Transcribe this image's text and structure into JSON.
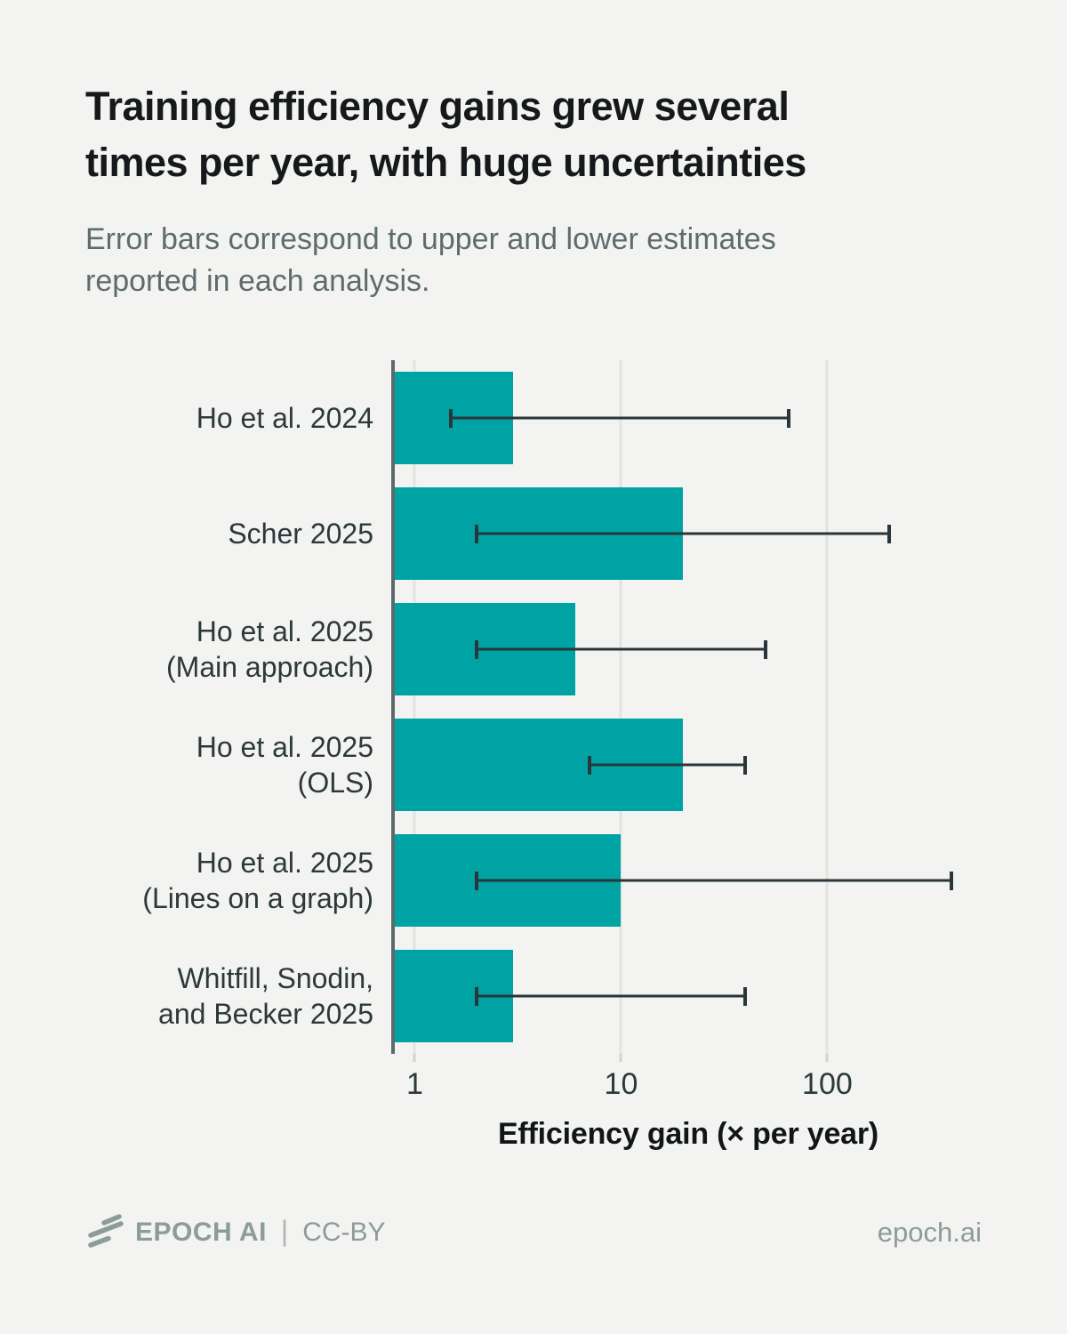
{
  "header": {
    "title_lines": [
      "Training efficiency gains grew several",
      "times per year, with huge uncertainties"
    ],
    "subtitle_lines": [
      "Error bars correspond to upper and lower estimates",
      "reported in each analysis."
    ]
  },
  "chart_data": {
    "type": "bar",
    "orientation": "horizontal",
    "xscale": "log",
    "grid": true,
    "title": "Training efficiency gains grew several times per year, with huge uncertainties",
    "subtitle": "Error bars correspond to upper and lower estimates reported in each analysis.",
    "xlabel": "Efficiency gain (× per year)",
    "xlim": [
      0.8,
      560
    ],
    "xticks": [
      1,
      10,
      100
    ],
    "xtick_labels": [
      "1",
      "10",
      "100"
    ],
    "categories": [
      "Ho et al. 2024",
      "Scher 2025",
      "Ho et al. 2025 (Main approach)",
      "Ho et al. 2025 (OLS)",
      "Ho et al. 2025 (Lines on a graph)",
      "Whitfill, Snodin, and Becker 2025"
    ],
    "category_lines": [
      [
        "Ho et al. 2024"
      ],
      [
        "Scher 2025"
      ],
      [
        "Ho et al. 2025",
        "(Main approach)"
      ],
      [
        "Ho et al. 2025",
        "(OLS)"
      ],
      [
        "Ho et al. 2025",
        "(Lines on a graph)"
      ],
      [
        "Whitfill, Snodin,",
        "and Becker 2025"
      ]
    ],
    "values": [
      3,
      20,
      6,
      20,
      10,
      3
    ],
    "error_low": [
      1.5,
      2,
      2,
      7,
      2,
      2
    ],
    "error_high": [
      65,
      200,
      50,
      40,
      400,
      40
    ]
  },
  "colors": {
    "background": "#f3f3f1",
    "bar": "#00a3a3",
    "error_bar": "#2a363a",
    "gridline": "#e3e3e0",
    "axis_line": "#5d6a6a",
    "title_text": "#16191b",
    "subtitle_text": "#5e6c6e",
    "label_text": "#2c383a",
    "footer_text": "#8c9c9a"
  },
  "footer": {
    "brand": "EPOCH AI",
    "divider": "|",
    "license": "CC-BY",
    "site": "epoch.ai"
  }
}
